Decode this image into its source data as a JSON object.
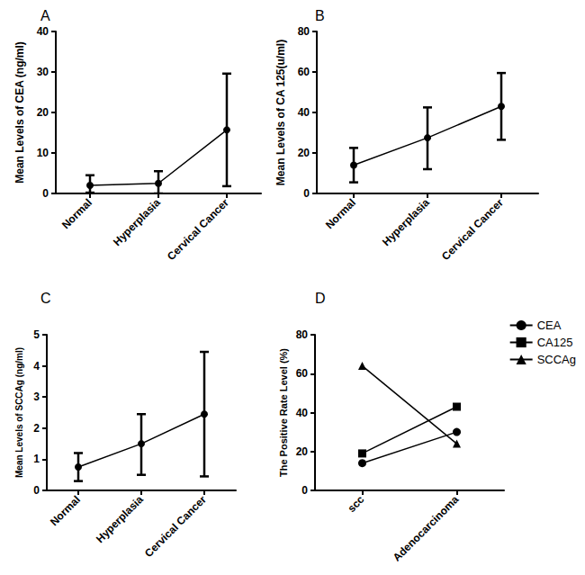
{
  "chart_data": [
    {
      "type": "line",
      "title": "A",
      "y_label": "Mean Levels of CEA (ng/ml)",
      "categories": [
        "Normal",
        "Hyperplasia",
        "Cervical Cancer"
      ],
      "values": [
        2,
        2.5,
        15.7
      ],
      "error_low": [
        0.2,
        0,
        1.8
      ],
      "error_high": [
        4.5,
        5.5,
        29.6
      ],
      "ylim": [
        0,
        40
      ],
      "yticks": [
        0,
        10,
        20,
        30,
        40
      ],
      "color": "#000000",
      "marker": "circle",
      "grid": false
    },
    {
      "type": "line",
      "title": "B",
      "y_label": "Mean Levels of CA 125(u/ml)",
      "categories": [
        "Normal",
        "Hyperplasia",
        "Cervical Cancer"
      ],
      "values": [
        14,
        27.5,
        43
      ],
      "error_low": [
        5.5,
        12,
        26.5
      ],
      "error_high": [
        22.5,
        42.5,
        59.5
      ],
      "ylim": [
        0,
        80
      ],
      "yticks": [
        0,
        20,
        40,
        60,
        80
      ],
      "color": "#000000",
      "marker": "circle",
      "grid": false
    },
    {
      "type": "line",
      "title": "C",
      "y_label": "Mean Levels of SCCAg (ng/ml)",
      "categories": [
        "Normal",
        "Hyperplasia",
        "Cervical Cancer"
      ],
      "values": [
        0.75,
        1.5,
        2.45
      ],
      "error_low": [
        0.3,
        0.5,
        0.45
      ],
      "error_high": [
        1.2,
        2.45,
        4.45
      ],
      "ylim": [
        0,
        5
      ],
      "yticks": [
        0,
        1,
        2,
        3,
        4,
        5
      ],
      "color": "#000000",
      "marker": "circle",
      "grid": false
    },
    {
      "type": "line",
      "title": "D",
      "y_label": "The Positive Rate Level (%)",
      "categories": [
        "scc",
        "Adenocarcinoma"
      ],
      "series": [
        {
          "name": "CEA",
          "color": "#000000",
          "marker": "circle",
          "values": [
            14,
            30
          ]
        },
        {
          "name": "CA125",
          "color": "#000000",
          "marker": "square",
          "values": [
            19,
            43
          ]
        },
        {
          "name": "SCCAg",
          "color": "#000000",
          "marker": "triangle",
          "values": [
            64,
            24
          ]
        }
      ],
      "ylim": [
        0,
        80
      ],
      "yticks": [
        0,
        20,
        40,
        60,
        80
      ],
      "legend": "top-right",
      "grid": false
    }
  ]
}
